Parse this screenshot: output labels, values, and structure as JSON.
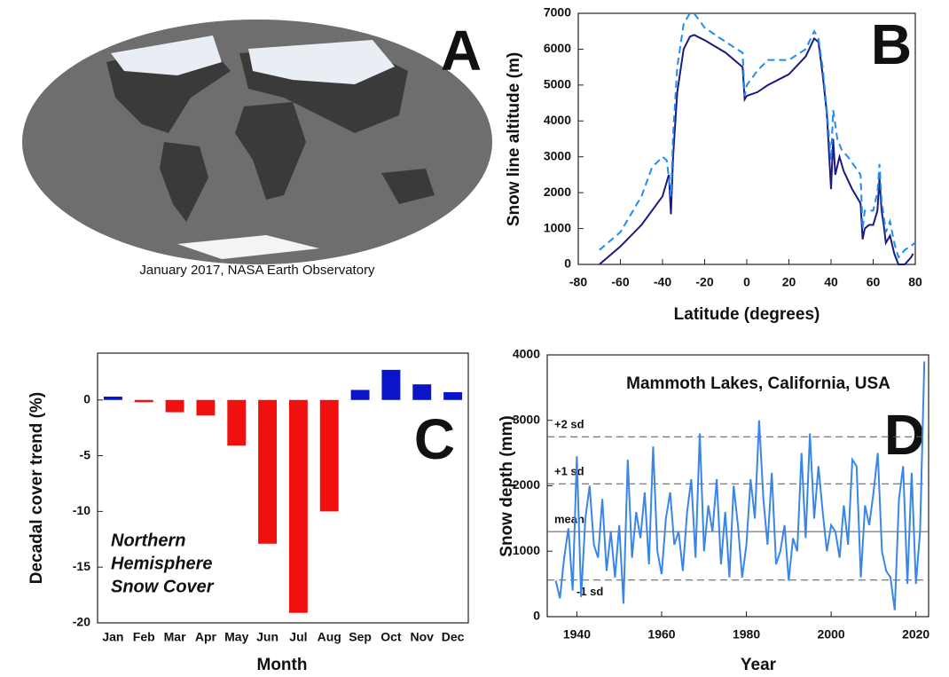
{
  "chart_data": [
    {
      "type": "map",
      "panel": "A",
      "caption": "January 2017, NASA Earth Observatory"
    },
    {
      "type": "line",
      "panel": "B",
      "xlabel": "Latitude (degrees)",
      "ylabel": "Snow line altitude (m)",
      "xlim": [
        -80,
        80
      ],
      "xticks": [
        -80,
        -60,
        -40,
        -20,
        0,
        20,
        40,
        60,
        80
      ],
      "ylim": [
        0,
        7000
      ],
      "yticks": [
        0,
        1000,
        2000,
        3000,
        4000,
        5000,
        6000,
        7000
      ],
      "series": [
        {
          "color": "#1a1a80",
          "dash": "solid",
          "x": [
            -70,
            -60,
            -50,
            -40,
            -37,
            -36,
            -35,
            -33,
            -30,
            -27,
            -25,
            -20,
            -10,
            -2,
            -1,
            0,
            5,
            10,
            20,
            28,
            32,
            34,
            36,
            38,
            40,
            41,
            42,
            44,
            46,
            50,
            54,
            55,
            56,
            58,
            60,
            62,
            63,
            64,
            65,
            66,
            68,
            70,
            72,
            75,
            78,
            79
          ],
          "values": [
            0,
            500,
            1100,
            1900,
            2500,
            1400,
            3000,
            4800,
            6000,
            6350,
            6400,
            6250,
            5900,
            5500,
            4600,
            4700,
            4800,
            5000,
            5300,
            5800,
            6300,
            6200,
            5300,
            4200,
            2100,
            3500,
            2500,
            3000,
            2600,
            2100,
            1700,
            700,
            1000,
            1100,
            1100,
            1500,
            2400,
            1500,
            1100,
            600,
            800,
            300,
            0,
            0,
            200,
            300
          ]
        },
        {
          "color": "#1e8cf0",
          "dash": "dashed",
          "x": [
            -70,
            -60,
            -50,
            -45,
            -40,
            -38,
            -36,
            -35,
            -33,
            -30,
            -27,
            -25,
            -20,
            -10,
            -2,
            -1,
            0,
            5,
            10,
            20,
            28,
            32,
            34,
            36,
            38,
            40,
            41,
            43,
            45,
            48,
            54,
            55,
            56,
            60,
            62,
            63,
            64,
            66,
            68,
            70,
            72,
            75,
            80
          ],
          "values": [
            400,
            900,
            1900,
            2700,
            3000,
            2900,
            1900,
            3600,
            5500,
            6700,
            7000,
            7000,
            6600,
            6200,
            5900,
            4700,
            5000,
            5400,
            5700,
            5700,
            6000,
            6500,
            6300,
            5500,
            4300,
            2900,
            4300,
            3500,
            3200,
            3000,
            2500,
            1000,
            1500,
            1500,
            2000,
            2800,
            1800,
            900,
            1200,
            600,
            200,
            400,
            600
          ]
        }
      ]
    },
    {
      "type": "bar",
      "panel": "C",
      "xlabel": "Month",
      "ylabel": "Decadal cover trend (%)",
      "annotation": [
        "Northern",
        "Hemisphere",
        "Snow Cover"
      ],
      "categories": [
        "Jan",
        "Feb",
        "Mar",
        "Apr",
        "May",
        "Jun",
        "Jul",
        "Aug",
        "Sep",
        "Oct",
        "Nov",
        "Dec"
      ],
      "values": [
        0.3,
        -0.2,
        -1.1,
        -1.4,
        -4.1,
        -12.9,
        -19.1,
        -10,
        0.9,
        2.7,
        1.4,
        0.7
      ],
      "colors": [
        "#0a14c8",
        "#f01010",
        "#f01010",
        "#f01010",
        "#f01010",
        "#f01010",
        "#f01010",
        "#f01010",
        "#0a14c8",
        "#0a14c8",
        "#0a14c8",
        "#0a14c8"
      ],
      "ylim": [
        -20,
        4.2
      ],
      "yticks": [
        -20,
        -15,
        -10,
        -5,
        0
      ]
    },
    {
      "type": "line",
      "panel": "D",
      "xlabel": "Year",
      "ylabel": "Snow depth (mm)",
      "annotation": "Mammoth Lakes, California, USA",
      "xlim": [
        1933,
        2023
      ],
      "xticks": [
        1940,
        1960,
        1980,
        2000,
        2020
      ],
      "ylim": [
        0,
        4000
      ],
      "yticks": [
        0,
        1000,
        2000,
        3000,
        4000
      ],
      "hlines": [
        {
          "value": 2750,
          "label": "+2 sd",
          "dash": "dashed"
        },
        {
          "value": 2030,
          "label": "+1 sd",
          "dash": "dashed"
        },
        {
          "value": 1300,
          "label": "mean",
          "dash": "solid"
        },
        {
          "value": 560,
          "label": "-1 sd",
          "dash": "dashed"
        }
      ],
      "series": [
        {
          "color": "#3a86e8",
          "dash": "solid",
          "x": [
            1935,
            1936,
            1937,
            1938,
            1939,
            1940,
            1941,
            1942,
            1943,
            1944,
            1945,
            1946,
            1947,
            1948,
            1949,
            1950,
            1951,
            1952,
            1953,
            1954,
            1955,
            1956,
            1957,
            1958,
            1959,
            1960,
            1961,
            1962,
            1963,
            1964,
            1965,
            1966,
            1967,
            1968,
            1969,
            1970,
            1971,
            1972,
            1973,
            1974,
            1975,
            1976,
            1977,
            1978,
            1979,
            1980,
            1981,
            1982,
            1983,
            1984,
            1985,
            1986,
            1987,
            1988,
            1989,
            1990,
            1991,
            1992,
            1993,
            1994,
            1995,
            1996,
            1997,
            1998,
            1999,
            2000,
            2001,
            2002,
            2003,
            2004,
            2005,
            2006,
            2007,
            2008,
            2009,
            2010,
            2011,
            2012,
            2013,
            2014,
            2015,
            2016,
            2017,
            2018,
            2019,
            2020,
            2021,
            2022
          ],
          "values": [
            550,
            280,
            900,
            1350,
            400,
            2450,
            300,
            1500,
            2000,
            1100,
            900,
            1800,
            700,
            1300,
            600,
            1400,
            200,
            2400,
            900,
            1600,
            1200,
            1900,
            800,
            2600,
            1000,
            650,
            1500,
            1900,
            1100,
            1300,
            700,
            1600,
            2100,
            900,
            2800,
            1000,
            1700,
            1300,
            2100,
            800,
            1600,
            600,
            2000,
            1400,
            600,
            1100,
            2100,
            1500,
            3000,
            1800,
            1100,
            2200,
            800,
            1000,
            1400,
            550,
            1200,
            1000,
            2500,
            1200,
            2800,
            1500,
            2300,
            1600,
            1000,
            1400,
            1300,
            900,
            1700,
            1100,
            2400,
            2300,
            600,
            1700,
            1400,
            1900,
            2500,
            1000,
            700,
            600,
            100,
            1800,
            2300,
            500,
            2200,
            500,
            1300,
            3900
          ]
        }
      ]
    }
  ]
}
